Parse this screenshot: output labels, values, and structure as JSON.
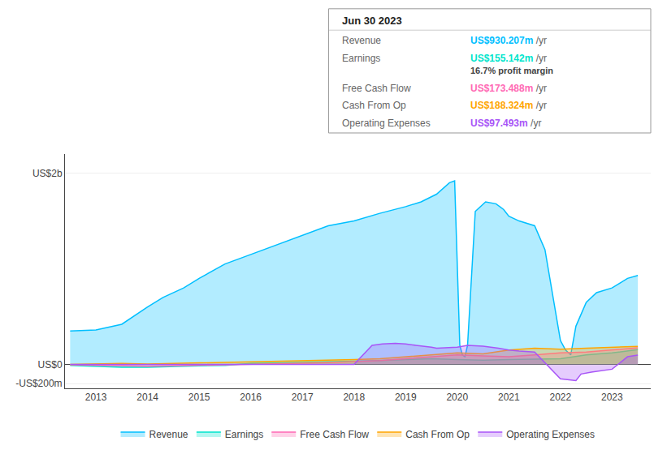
{
  "chart_data": {
    "type": "area",
    "xlim": [
      2012.4,
      2023.75
    ],
    "xticks": [
      2013,
      2014,
      2015,
      2016,
      2017,
      2018,
      2019,
      2020,
      2021,
      2022,
      2023
    ],
    "ylim": [
      -250,
      2200
    ],
    "yticks": [
      {
        "value": -200,
        "label": "-US$200m"
      },
      {
        "value": 0,
        "label": "US$0"
      },
      {
        "value": 2000,
        "label": "US$2b"
      }
    ],
    "grid": true,
    "legend": "bottom",
    "series": [
      {
        "name": "Revenue",
        "color": "#00bfff",
        "x": [
          2012.5,
          2013,
          2013.5,
          2014,
          2014.3,
          2014.7,
          2015,
          2015.5,
          2016,
          2016.5,
          2017,
          2017.5,
          2018,
          2018.5,
          2019,
          2019.3,
          2019.6,
          2019.85,
          2019.95,
          2020.05,
          2020.1,
          2020.15,
          2020.2,
          2020.35,
          2020.55,
          2020.75,
          2020.9,
          2021,
          2021.2,
          2021.5,
          2021.7,
          2022,
          2022.1,
          2022.2,
          2022.3,
          2022.5,
          2022.7,
          2023,
          2023.3,
          2023.5
        ],
        "values": [
          350,
          360,
          420,
          600,
          700,
          800,
          900,
          1050,
          1150,
          1250,
          1350,
          1450,
          1500,
          1580,
          1650,
          1700,
          1780,
          1900,
          1920,
          200,
          100,
          80,
          200,
          1600,
          1700,
          1680,
          1620,
          1550,
          1500,
          1450,
          1200,
          250,
          150,
          100,
          400,
          650,
          750,
          800,
          900,
          930
        ]
      },
      {
        "name": "Earnings",
        "color": "#00e5cc",
        "x": [
          2012.5,
          2013,
          2013.5,
          2014,
          2014.5,
          2015,
          2015.5,
          2016,
          2016.5,
          2017,
          2017.5,
          2018,
          2018.5,
          2019,
          2019.5,
          2020,
          2020.5,
          2021,
          2021.5,
          2022,
          2022.5,
          2023,
          2023.5
        ],
        "values": [
          -10,
          -20,
          -30,
          -30,
          -20,
          -15,
          -10,
          10,
          15,
          20,
          25,
          30,
          40,
          50,
          60,
          50,
          45,
          50,
          55,
          60,
          100,
          120,
          155
        ]
      },
      {
        "name": "Free Cash Flow",
        "color": "#ff69b4",
        "x": [
          2012.5,
          2013,
          2013.5,
          2014,
          2014.5,
          2015,
          2015.5,
          2016,
          2016.5,
          2017,
          2017.5,
          2018,
          2018.5,
          2019,
          2019.5,
          2020,
          2020.5,
          2021,
          2021.5,
          2022,
          2022.5,
          2023,
          2023.5
        ],
        "values": [
          -5,
          -10,
          -15,
          -20,
          -15,
          -10,
          -5,
          5,
          10,
          15,
          20,
          30,
          40,
          60,
          80,
          100,
          90,
          80,
          100,
          120,
          130,
          150,
          173
        ]
      },
      {
        "name": "Cash From Op",
        "color": "#ffa500",
        "x": [
          2012.5,
          2013,
          2013.5,
          2014,
          2014.5,
          2015,
          2015.5,
          2016,
          2016.5,
          2017,
          2017.5,
          2018,
          2018.5,
          2019,
          2019.5,
          2020,
          2020.5,
          2021,
          2021.5,
          2022,
          2022.5,
          2023,
          2023.5
        ],
        "values": [
          0,
          5,
          10,
          5,
          10,
          15,
          20,
          25,
          30,
          35,
          40,
          50,
          60,
          80,
          100,
          120,
          110,
          150,
          170,
          160,
          170,
          180,
          188
        ]
      },
      {
        "name": "Operating Expenses",
        "color": "#a855f7",
        "x": [
          2012.5,
          2013,
          2013.5,
          2014,
          2014.5,
          2015,
          2015.5,
          2016,
          2016.5,
          2017,
          2017.5,
          2018,
          2018.35,
          2018.5,
          2018.55,
          2018.8,
          2019,
          2019.2,
          2019.4,
          2019.5,
          2019.6,
          2020,
          2020.2,
          2020.5,
          2020.8,
          2021,
          2021.2,
          2021.5,
          2022,
          2022.2,
          2022.3,
          2022.4,
          2022.6,
          2023,
          2023.3,
          2023.5
        ],
        "values": [
          0,
          0,
          0,
          0,
          0,
          0,
          0,
          0,
          0,
          0,
          0,
          0,
          200,
          210,
          215,
          220,
          215,
          200,
          190,
          180,
          170,
          180,
          200,
          190,
          170,
          150,
          140,
          130,
          -150,
          -160,
          -170,
          -100,
          -80,
          -50,
          80,
          97
        ]
      }
    ],
    "annotations": [
      {
        "text": "Jun 30 2023"
      },
      {
        "label": "Revenue",
        "text": "US$930.207m",
        "suffix": " /yr",
        "color": "#00bfff"
      },
      {
        "label": "Earnings",
        "text": "US$155.142m",
        "suffix": " /yr",
        "color": "#00e5cc",
        "note": "16.7% profit margin"
      },
      {
        "label": "Free Cash Flow",
        "text": "US$173.488m",
        "suffix": " /yr",
        "color": "#ff69b4"
      },
      {
        "label": "Cash From Op",
        "text": "US$188.324m",
        "suffix": " /yr",
        "color": "#ffa500"
      },
      {
        "label": "Operating Expenses",
        "text": "US$97.493m",
        "suffix": " /yr",
        "color": "#a855f7"
      }
    ]
  }
}
